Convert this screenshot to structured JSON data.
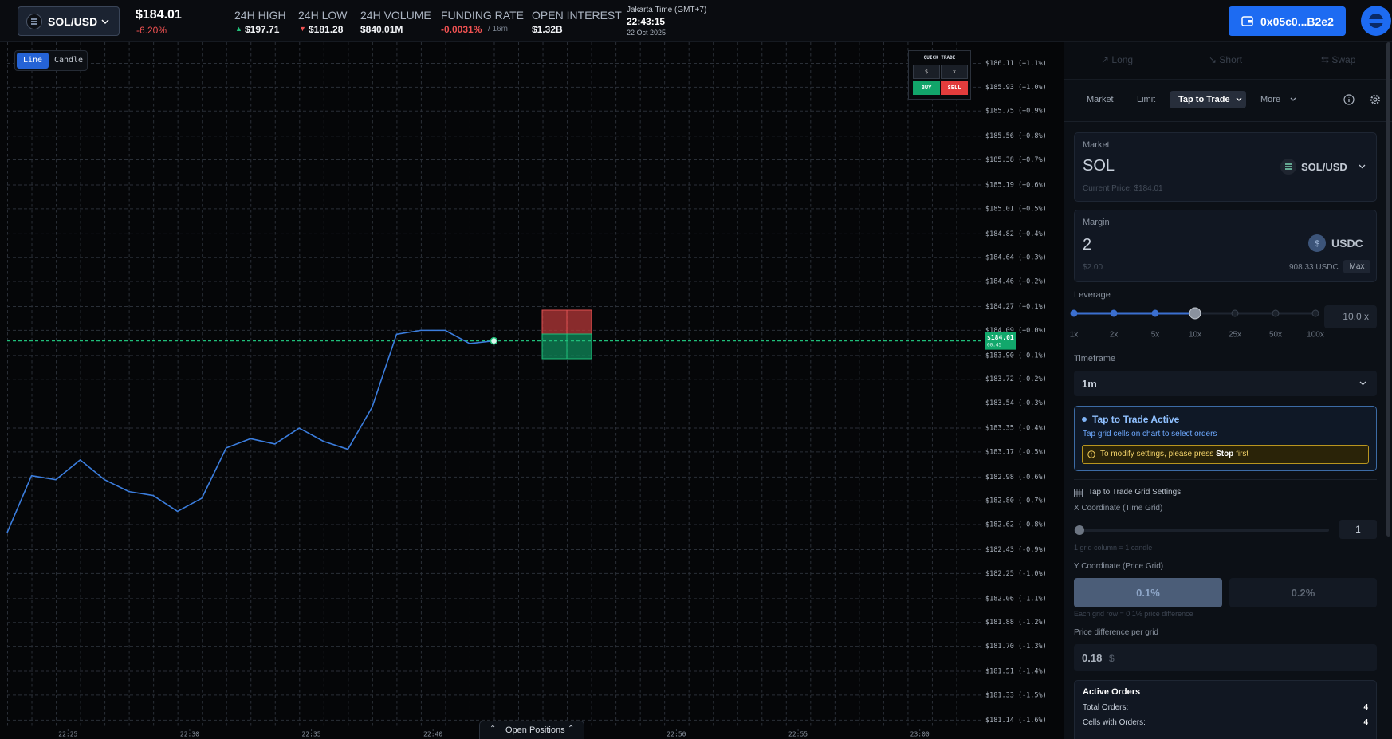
{
  "header": {
    "pair": "SOL/USD",
    "price": "$184.01",
    "change": "-6.20%",
    "stats": [
      {
        "label": "24H HIGH",
        "value": "$197.71"
      },
      {
        "label": "24H LOW",
        "value": "$181.28"
      },
      {
        "label": "24H VOLUME",
        "value": "$840.01M"
      },
      {
        "label": "FUNDING RATE",
        "value": "-0.0031%",
        "suffix": "/ 16m"
      },
      {
        "label": "OPEN INTEREST",
        "value": "$1.32B"
      }
    ],
    "time": {
      "zone": "Jakarta Time (GMT+7)",
      "clock": "22:43:15",
      "date": "22 Oct 2025"
    },
    "wallet": "0x05c0...B2e2"
  },
  "chart_data": {
    "type": "line",
    "modes": [
      "Line",
      "Candle"
    ],
    "quick_trade": {
      "title": "QUICK TRADE",
      "inputs": [
        "$",
        "x"
      ],
      "buttons": [
        "BUY",
        "SELL"
      ]
    },
    "color": "#3b7ddd",
    "x": [
      1342.5,
      1343.5,
      1344.5,
      1345.5,
      1346.5,
      1347.5,
      1348.5,
      1349.5,
      1350.5,
      1351.5,
      1352.5,
      1353.5,
      1354.5,
      1355.5,
      1356.5,
      1357.5,
      1358.5,
      1359.5,
      1360.5,
      1361.5,
      1362.5
    ],
    "values": [
      182.56,
      182.99,
      182.96,
      183.11,
      182.96,
      182.87,
      182.84,
      182.72,
      182.82,
      183.2,
      183.27,
      183.23,
      183.35,
      183.25,
      183.19,
      183.51,
      184.06,
      184.09,
      184.09,
      183.99,
      184.01
    ],
    "current_price": 184.01,
    "current_price_label": "$184.01",
    "countdown": "00:45",
    "xlim": [
      1342.5,
      1382.5
    ],
    "xticks": [
      {
        "value": 1345,
        "label": "22:25"
      },
      {
        "value": 1350,
        "label": "22:30"
      },
      {
        "value": 1355,
        "label": "22:35"
      },
      {
        "value": 1360,
        "label": "22:40"
      },
      {
        "value": 1370,
        "label": "22:50"
      },
      {
        "value": 1375,
        "label": "22:55"
      },
      {
        "value": 1380,
        "label": "23:00"
      }
    ],
    "ylim": [
      181.07,
      186.27
    ],
    "yticks": [
      {
        "value": 186.11,
        "label": "$186.11 (+1.1%)"
      },
      {
        "value": 185.93,
        "label": "$185.93 (+1.0%)"
      },
      {
        "value": 185.75,
        "label": "$185.75 (+0.9%)"
      },
      {
        "value": 185.56,
        "label": "$185.56 (+0.8%)"
      },
      {
        "value": 185.38,
        "label": "$185.38 (+0.7%)"
      },
      {
        "value": 185.19,
        "label": "$185.19 (+0.6%)"
      },
      {
        "value": 185.01,
        "label": "$185.01 (+0.5%)"
      },
      {
        "value": 184.82,
        "label": "$184.82 (+0.4%)"
      },
      {
        "value": 184.64,
        "label": "$184.64 (+0.3%)"
      },
      {
        "value": 184.46,
        "label": "$184.46 (+0.2%)"
      },
      {
        "value": 184.27,
        "label": "$184.27 (+0.1%)"
      },
      {
        "value": 184.09,
        "label": "$184.09 (+0.0%)"
      },
      {
        "value": 183.9,
        "label": "$183.90 (-0.1%)"
      },
      {
        "value": 183.72,
        "label": "$183.72 (-0.2%)"
      },
      {
        "value": 183.54,
        "label": "$183.54 (-0.3%)"
      },
      {
        "value": 183.35,
        "label": "$183.35 (-0.4%)"
      },
      {
        "value": 183.17,
        "label": "$183.17 (-0.5%)"
      },
      {
        "value": 182.98,
        "label": "$182.98 (-0.6%)"
      },
      {
        "value": 182.8,
        "label": "$182.80 (-0.7%)"
      },
      {
        "value": 182.62,
        "label": "$182.62 (-0.8%)"
      },
      {
        "value": 182.43,
        "label": "$182.43 (-0.9%)"
      },
      {
        "value": 182.25,
        "label": "$182.25 (-1.0%)"
      },
      {
        "value": 182.06,
        "label": "$182.06 (-1.1%)"
      },
      {
        "value": 181.88,
        "label": "$181.88 (-1.2%)"
      },
      {
        "value": 181.7,
        "label": "$181.70 (-1.3%)"
      },
      {
        "value": 181.51,
        "label": "$181.51 (-1.4%)"
      },
      {
        "value": 181.33,
        "label": "$181.33 (-1.5%)"
      },
      {
        "value": 181.14,
        "label": "$181.14 (-1.6%)"
      }
    ],
    "grid": true,
    "open_positions": "Open Positions"
  },
  "panel": {
    "tabs": [
      "Long",
      "Short",
      "Swap"
    ],
    "order_types": [
      "Market",
      "Limit",
      "Tap to Trade",
      "More"
    ],
    "market": {
      "label": "Market",
      "asset": "SOL",
      "pair": "SOL/USD",
      "current_price": "Current Price: $184.01"
    },
    "margin": {
      "label": "Margin",
      "amount": "2",
      "token": "USDC",
      "usd": "$2.00",
      "balance": "908.33 USDC",
      "max": "Max"
    },
    "leverage": {
      "label": "Leverage",
      "options": [
        "1x",
        "2x",
        "5x",
        "10x",
        "25x",
        "50x",
        "100x"
      ],
      "value": "10.0 x"
    },
    "timeframe": {
      "label": "Timeframe",
      "value": "1m"
    },
    "tap_status": {
      "title": "Tap to Trade Active",
      "text": "Tap grid cells on chart to select orders",
      "warning_before": "To modify settings, please press",
      "warning_strong": "Stop",
      "warning_after": "first"
    },
    "grid_settings": {
      "title": "Tap to Trade Grid Settings",
      "x_label": "X Coordinate (Time Grid)",
      "x_value": "1",
      "x_note": "1 grid column = 1 candle",
      "y_label": "Y Coordinate (Price Grid)",
      "y_options": [
        "0.1%",
        "0.2%"
      ],
      "y_note": "Each grid row = 0.1% price difference",
      "diff_label": "Price difference per grid",
      "diff_value": "0.18",
      "diff_unit": "$"
    },
    "active_orders": {
      "title": "Active Orders",
      "rows": [
        [
          "Total Orders:",
          "4"
        ],
        [
          "Cells with Orders:",
          "4"
        ]
      ]
    }
  }
}
